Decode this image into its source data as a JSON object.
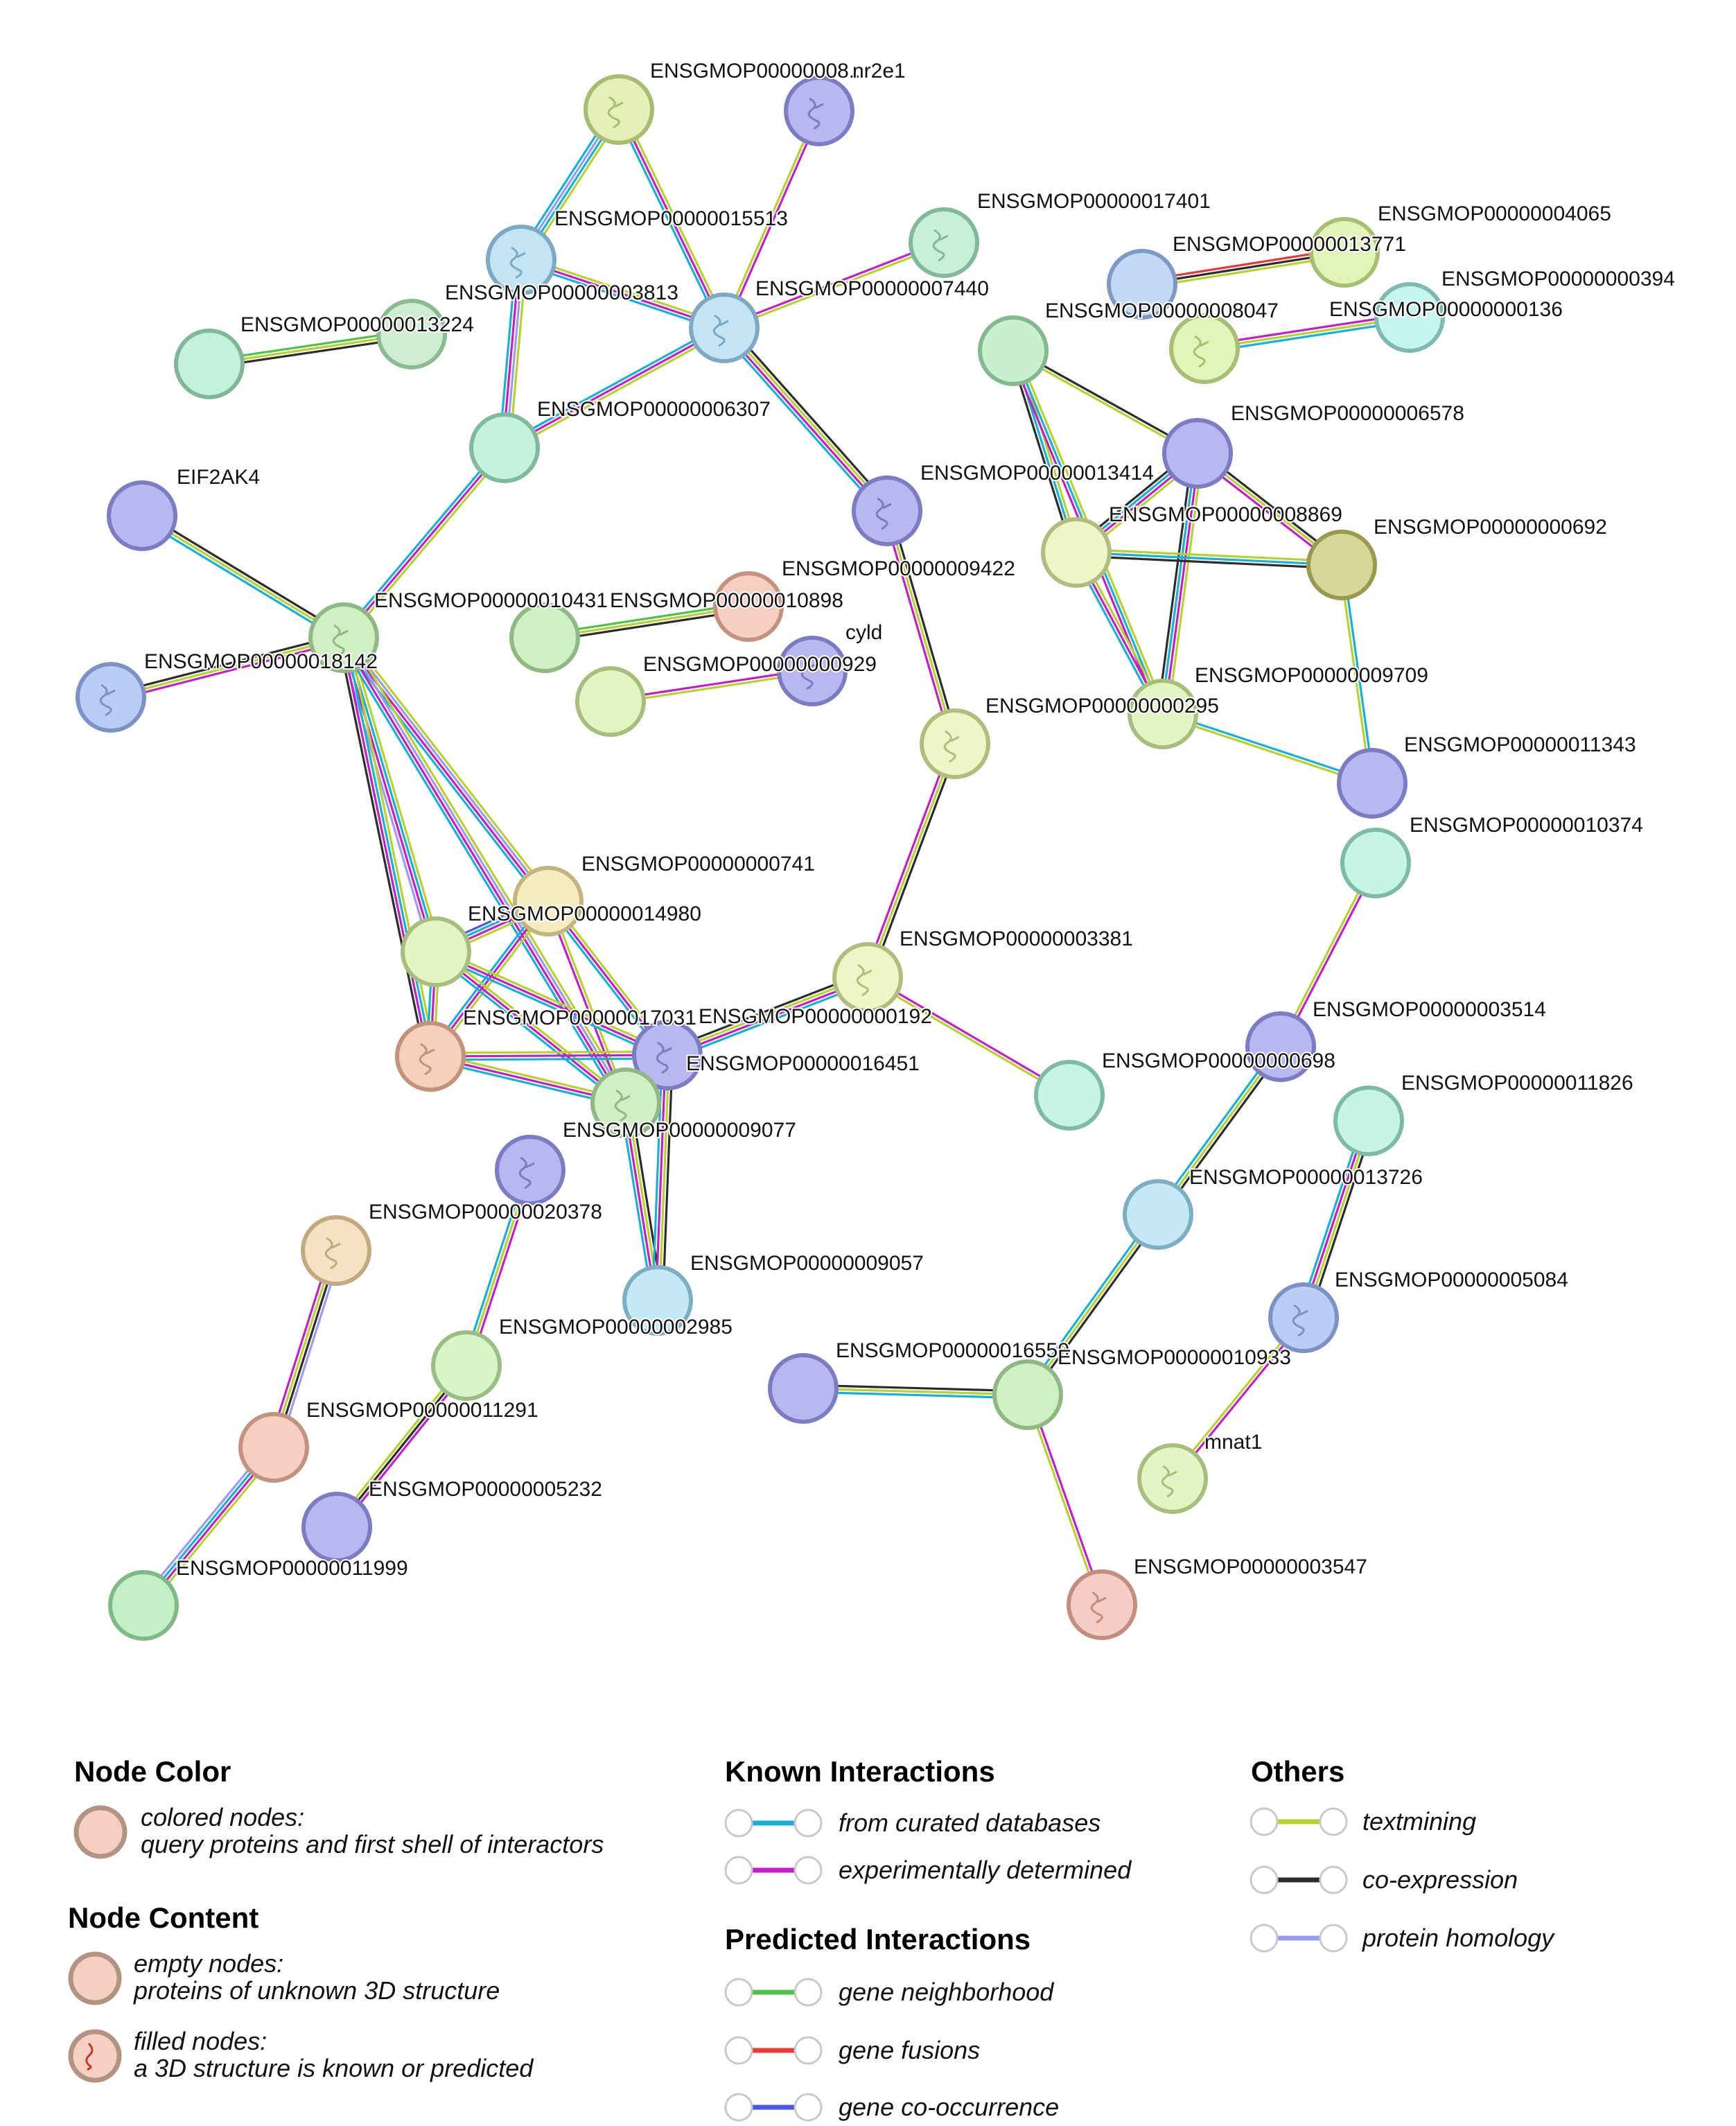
{
  "colors": {
    "curated": "#15b1d6",
    "experimental": "#c41ec6",
    "neighborhood": "#4cc24c",
    "fusion": "#e8383a",
    "cooccurrence": "#4f58e0",
    "textmining": "#b7d22f",
    "coexpression": "#2c2c2c",
    "homology": "#9a9cf0"
  },
  "nodes": [
    {
      "id": "n_nr2e1_a",
      "label": "ENSGMOP00000008...",
      "color": "#e4f0b8",
      "stroke": "#a9bd72",
      "structure": true
    },
    {
      "id": "nr2e1",
      "label": "nr2e1",
      "color": "#b9b7f0",
      "stroke": "#7d7bc1",
      "structure": true
    },
    {
      "id": "p15513",
      "label": "ENSGMOP00000015513",
      "color": "#c4e3f5",
      "stroke": "#7ea9c2",
      "structure": true
    },
    {
      "id": "p17401",
      "label": "ENSGMOP00000017401",
      "color": "#c8f0d8",
      "stroke": "#82b99a",
      "structure": true
    },
    {
      "id": "p13771",
      "label": "ENSGMOP00000013771",
      "color": "#c3d9f7",
      "stroke": "#7f99c2",
      "structure": false
    },
    {
      "id": "p04065",
      "label": "ENSGMOP00000004065",
      "color": "#e1f5b9",
      "stroke": "#a6bf74",
      "structure": false
    },
    {
      "id": "p00394",
      "label": "ENSGMOP00000000394",
      "color": "#c6f4ee",
      "stroke": "#7fbab1",
      "structure": false
    },
    {
      "id": "p03813",
      "label": "ENSGMOP00000003813",
      "color": "#c4e3f5",
      "stroke": "#7ea9c2",
      "structure": true
    },
    {
      "id": "p07440",
      "label": "ENSGMOP00000007440",
      "color": "#c4e3f5",
      "stroke": "#7ea9c2",
      "structure": true
    },
    {
      "id": "p08047",
      "label": "ENSGMOP00000008047",
      "color": "#e1f5b9",
      "stroke": "#a6bf74",
      "structure": true
    },
    {
      "id": "p00136",
      "label": "ENSGMOP00000000136",
      "color": "#c6f4ee",
      "stroke": "#7fbab1",
      "structure": false
    },
    {
      "id": "p13224",
      "label": "ENSGMOP00000013224",
      "color": "#c5f0dc",
      "stroke": "#80b79b",
      "structure": false
    },
    {
      "id": "p13224b",
      "label": "",
      "color": "#cdeed0",
      "stroke": "#8dbb91",
      "structure": false
    },
    {
      "id": "p0xx_a",
      "label": "",
      "color": "#c8f0cf",
      "stroke": "#86b88e",
      "structure": false
    },
    {
      "id": "p06307",
      "label": "ENSGMOP00000006307",
      "color": "#c5f2de",
      "stroke": "#80b99c",
      "structure": false
    },
    {
      "id": "p06578",
      "label": "ENSGMOP00000006578",
      "color": "#b9b7f0",
      "stroke": "#7d7bc1",
      "structure": false
    },
    {
      "id": "eif2ak4",
      "label": "EIF2AK4",
      "color": "#b9b7f0",
      "stroke": "#7d7bc1",
      "structure": false
    },
    {
      "id": "p13414",
      "label": "ENSGMOP00000013414",
      "color": "#b9b7f0",
      "stroke": "#7d7bc1",
      "structure": true
    },
    {
      "id": "p08869",
      "label": "ENSGMOP00000008869",
      "color": "#eef5c6",
      "stroke": "#b0bd7e",
      "structure": false
    },
    {
      "id": "p00692",
      "label": "ENSGMOP00000000692",
      "color": "#d7d696",
      "stroke": "#9a9952",
      "structure": false
    },
    {
      "id": "p09422",
      "label": "ENSGMOP00000009422",
      "color": "#b9b7f0",
      "stroke": "#7d7bc1",
      "structure": true
    },
    {
      "id": "p10431",
      "label": "ENSGMOP00000010431",
      "color": "#d0f0c4",
      "stroke": "#90b884",
      "structure": false
    },
    {
      "id": "p10898",
      "label": "ENSGMOP00000010898",
      "color": "#f5d0c2",
      "stroke": "#c2937f",
      "structure": false
    },
    {
      "id": "p18142",
      "label": "ENSGMOP00000018142",
      "color": "#d0f0c4",
      "stroke": "#90b884",
      "structure": true
    },
    {
      "id": "cyld",
      "label": "cyld",
      "color": "#b9b7f0",
      "stroke": "#7d7bc1",
      "structure": true
    },
    {
      "id": "p0x929",
      "label": "ENSGMOP00000000929",
      "color": "#e4f5c4",
      "stroke": "#a8be7f",
      "structure": false
    },
    {
      "id": "p_blue18",
      "label": "",
      "color": "#b9cdf5",
      "stroke": "#7d92c2",
      "structure": true
    },
    {
      "id": "p09709",
      "label": "ENSGMOP00000009709",
      "color": "#eef5c6",
      "stroke": "#b0bd7e",
      "structure": false
    },
    {
      "id": "p00295",
      "label": "ENSGMOP00000000295",
      "color": "#e4f5c4",
      "stroke": "#a8be7f",
      "structure": false
    },
    {
      "id": "p11343",
      "label": "ENSGMOP00000011343",
      "color": "#b9b7f0",
      "stroke": "#7d7bc1",
      "structure": false
    },
    {
      "id": "p10374",
      "label": "ENSGMOP00000010374",
      "color": "#c6f4e6",
      "stroke": "#7fbaa8",
      "structure": false
    },
    {
      "id": "p00741",
      "label": "ENSGMOP00000000741",
      "color": "#f5ecc2",
      "stroke": "#c2b57f",
      "structure": false
    },
    {
      "id": "p14980",
      "label": "ENSGMOP00000014980",
      "color": "#e4f5c4",
      "stroke": "#a8be7f",
      "structure": false
    },
    {
      "id": "p03381",
      "label": "ENSGMOP00000003381",
      "color": "#eef5c6",
      "stroke": "#b0bd7e",
      "structure": true
    },
    {
      "id": "p03514",
      "label": "ENSGMOP00000003514",
      "color": "#b9b7f0",
      "stroke": "#7d7bc1",
      "structure": false
    },
    {
      "id": "p17031",
      "label": "ENSGMOP00000017031",
      "color": "#f5d0bb",
      "stroke": "#c2937a",
      "structure": true
    },
    {
      "id": "p00192",
      "label": "ENSGMOP00000000192",
      "color": "#b9b7f0",
      "stroke": "#7d7bc1",
      "structure": true
    },
    {
      "id": "p16451",
      "label": "ENSGMOP00000016451",
      "color": "#c6f4e6",
      "stroke": "#7fbaa8",
      "structure": false
    },
    {
      "id": "p0x698",
      "label": "ENSGMOP00000000698",
      "color": "#c6f4e6",
      "stroke": "#7fbaa8",
      "structure": false
    },
    {
      "id": "p11826",
      "label": "ENSGMOP00000011826",
      "color": "#c6f4e6",
      "stroke": "#7fbaa8",
      "structure": false
    },
    {
      "id": "p09077",
      "label": "ENSGMOP00000009077",
      "color": "#d0f0c4",
      "stroke": "#90b884",
      "structure": true
    },
    {
      "id": "p_purple1",
      "label": "",
      "color": "#b9b7f0",
      "stroke": "#7d7bc1",
      "structure": true
    },
    {
      "id": "p13726",
      "label": "ENSGMOP00000013726",
      "color": "#c4e9f5",
      "stroke": "#7eaec2",
      "structure": false
    },
    {
      "id": "p20378",
      "label": "ENSGMOP00000020378",
      "color": "#f5e2c2",
      "stroke": "#c2a97f",
      "structure": true
    },
    {
      "id": "p09057",
      "label": "ENSGMOP00000009057",
      "color": "#c4e9f5",
      "stroke": "#7eaec2",
      "structure": false
    },
    {
      "id": "p05084",
      "label": "ENSGMOP00000005084",
      "color": "#b9cdf5",
      "stroke": "#7d92c2",
      "structure": true
    },
    {
      "id": "p02985",
      "label": "ENSGMOP00000002985",
      "color": "#d7f5c6",
      "stroke": "#9bbd86",
      "structure": false
    },
    {
      "id": "p16550",
      "label": "ENSGMOP00000016550",
      "color": "#b9b7f0",
      "stroke": "#7d7bc1",
      "structure": false
    },
    {
      "id": "p10933",
      "label": "ENSGMOP00000010933",
      "color": "#d0f0c4",
      "stroke": "#90b884",
      "structure": false
    },
    {
      "id": "p11291",
      "label": "ENSGMOP00000011291",
      "color": "#f5d0c2",
      "stroke": "#c2937f",
      "structure": false
    },
    {
      "id": "mnat1",
      "label": "mnat1",
      "color": "#e4f5c4",
      "stroke": "#a8be7f",
      "structure": true
    },
    {
      "id": "p05232",
      "label": "ENSGMOP00000005232",
      "color": "#b9b7f0",
      "stroke": "#7d7bc1",
      "structure": false
    },
    {
      "id": "p11999",
      "label": "ENSGMOP00000011999",
      "color": "#c4f0c8",
      "stroke": "#80b886",
      "structure": false
    },
    {
      "id": "p03547",
      "label": "ENSGMOP00000003547",
      "color": "#f5cdc4",
      "stroke": "#c28e80",
      "structure": true
    }
  ],
  "legend": {
    "node_color": {
      "title": "Node Color",
      "line1": "colored nodes:",
      "line2": "query proteins and first shell of interactors"
    },
    "node_content": {
      "title": "Node Content",
      "empty1": "empty nodes:",
      "empty2": "proteins of unknown 3D structure",
      "filled1": "filled nodes:",
      "filled2": "a 3D structure is known or predicted"
    },
    "known": {
      "title": "Known Interactions",
      "items": [
        "from curated databases",
        "experimentally determined"
      ]
    },
    "predicted": {
      "title": "Predicted Interactions",
      "items": [
        "gene neighborhood",
        "gene fusions",
        "gene co-occurrence"
      ]
    },
    "others": {
      "title": "Others",
      "items": [
        "textmining",
        "co-expression",
        "protein homology"
      ]
    }
  }
}
